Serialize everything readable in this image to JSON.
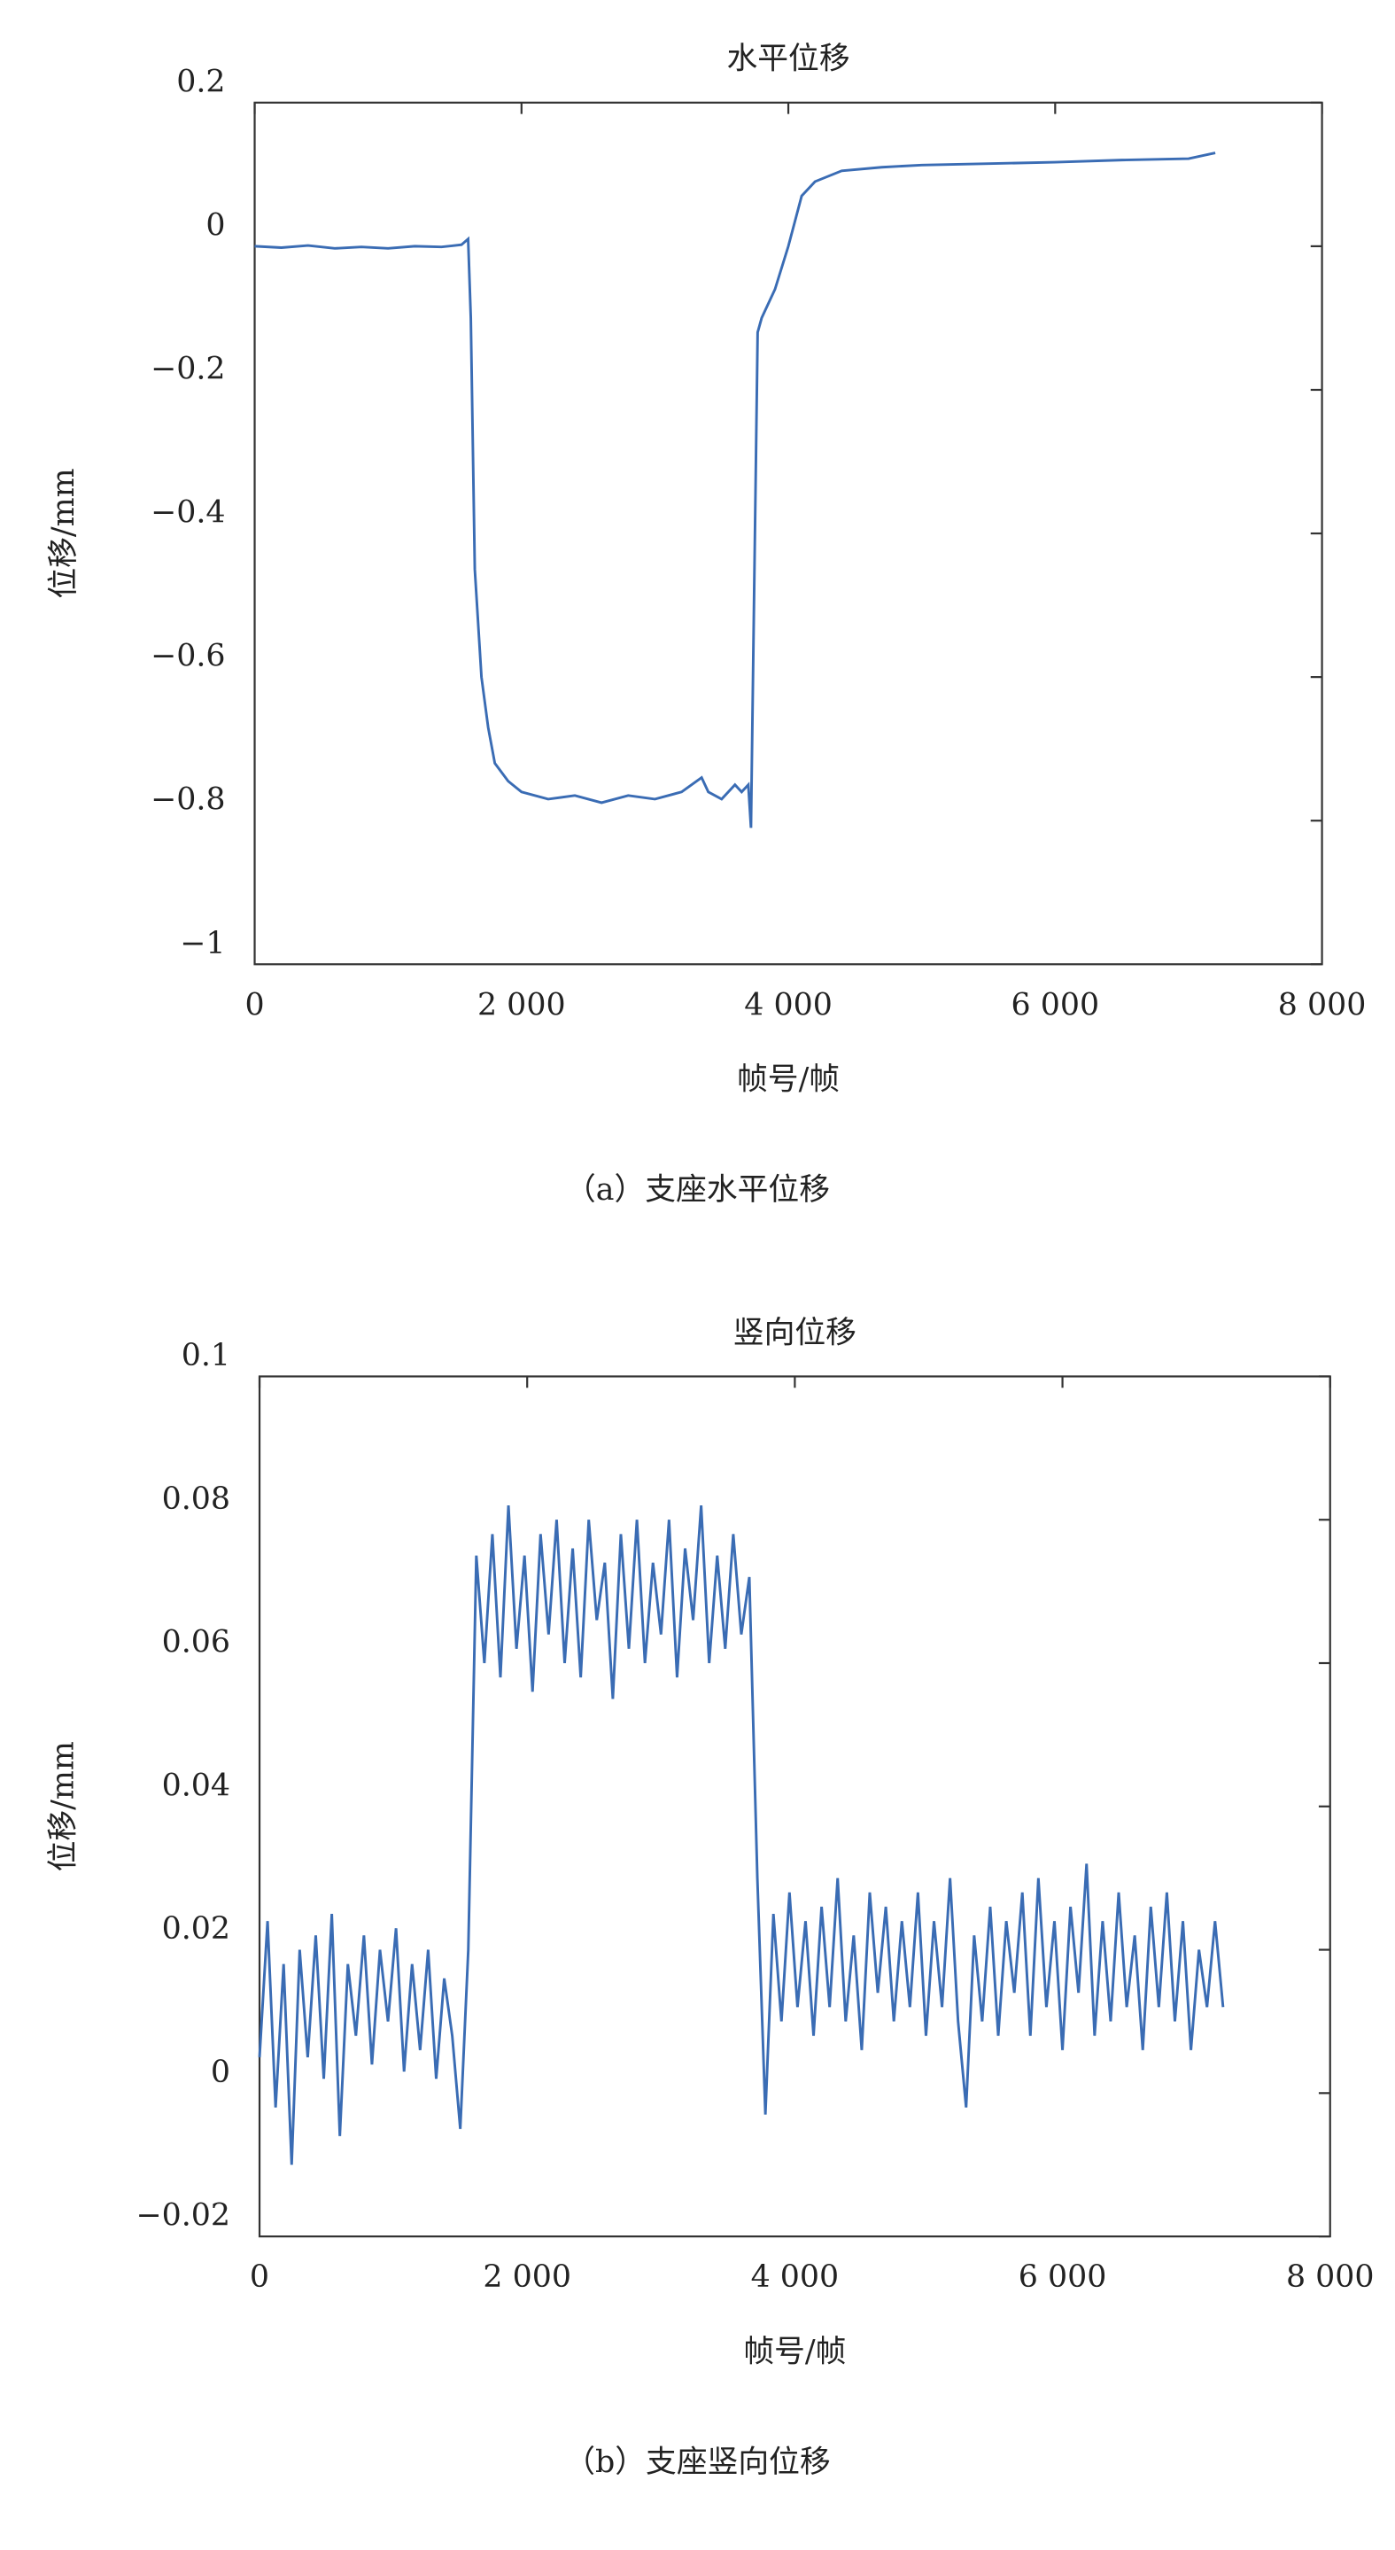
{
  "chart_data": [
    {
      "type": "line",
      "title": "水平位移",
      "xlabel": "帧号/帧",
      "ylabel": "位移/mm",
      "caption": "（a）支座水平位移",
      "xlim": [
        0,
        8000
      ],
      "xticks": [
        0,
        {
          "value": 2000,
          "label": "2 000"
        },
        {
          "value": 4000,
          "label": "4 000"
        },
        {
          "value": 6000,
          "label": "6 000"
        },
        {
          "value": 8000,
          "label": "8 000"
        }
      ],
      "ylim": [
        -1,
        0.2
      ],
      "yticks": [
        {
          "value": -1,
          "label": "−1"
        },
        {
          "value": -0.8,
          "label": "−0.8"
        },
        {
          "value": -0.6,
          "label": "−0.6"
        },
        {
          "value": -0.4,
          "label": "−0.4"
        },
        {
          "value": -0.2,
          "label": "−0.2"
        },
        0,
        0.2
      ],
      "series": [
        {
          "color": "#3a6cb4",
          "x": [
            0,
            200,
            400,
            600,
            800,
            1000,
            1200,
            1400,
            1550,
            1600,
            1620,
            1650,
            1700,
            1750,
            1800,
            1900,
            2000,
            2200,
            2400,
            2600,
            2800,
            3000,
            3200,
            3350,
            3400,
            3500,
            3600,
            3650,
            3700,
            3720,
            3770,
            3800,
            3900,
            4000,
            4100,
            4200,
            4400,
            4700,
            5000,
            5500,
            6000,
            6500,
            7000,
            7200
          ],
          "values": [
            0,
            -0.002,
            0.001,
            -0.003,
            -0.001,
            -0.003,
            0,
            -0.001,
            0.002,
            0.01,
            -0.1,
            -0.45,
            -0.6,
            -0.67,
            -0.72,
            -0.745,
            -0.76,
            -0.77,
            -0.765,
            -0.775,
            -0.765,
            -0.77,
            -0.76,
            -0.74,
            -0.76,
            -0.77,
            -0.75,
            -0.76,
            -0.75,
            -0.81,
            -0.12,
            -0.1,
            -0.06,
            0,
            0.07,
            0.09,
            0.105,
            0.11,
            0.113,
            0.115,
            0.117,
            0.12,
            0.122,
            0.13
          ]
        }
      ]
    },
    {
      "type": "line",
      "title": "竖向位移",
      "xlabel": "帧号/帧",
      "ylabel": "位移/mm",
      "caption": "（b）支座竖向位移",
      "xlim": [
        0,
        8000
      ],
      "xticks": [
        0,
        {
          "value": 2000,
          "label": "2 000"
        },
        {
          "value": 4000,
          "label": "4 000"
        },
        {
          "value": 6000,
          "label": "6 000"
        },
        {
          "value": 8000,
          "label": "8 000"
        }
      ],
      "ylim": [
        -0.02,
        0.1
      ],
      "yticks": [
        {
          "value": -0.02,
          "label": "−0.02"
        },
        0,
        0.02,
        0.04,
        0.06,
        0.08,
        0.1
      ],
      "series": [
        {
          "color": "#3a6cb4",
          "x": [
            0,
            60,
            120,
            180,
            240,
            300,
            360,
            420,
            480,
            540,
            600,
            660,
            720,
            780,
            840,
            900,
            960,
            1020,
            1080,
            1140,
            1200,
            1260,
            1320,
            1380,
            1440,
            1500,
            1560,
            1620,
            1680,
            1740,
            1800,
            1860,
            1920,
            1980,
            2040,
            2100,
            2160,
            2220,
            2280,
            2340,
            2400,
            2460,
            2520,
            2580,
            2640,
            2700,
            2760,
            2820,
            2880,
            2940,
            3000,
            3060,
            3120,
            3180,
            3240,
            3300,
            3360,
            3420,
            3480,
            3540,
            3600,
            3660,
            3720,
            3780,
            3840,
            3900,
            3960,
            4020,
            4080,
            4140,
            4200,
            4260,
            4320,
            4380,
            4440,
            4500,
            4560,
            4620,
            4680,
            4740,
            4800,
            4860,
            4920,
            4980,
            5040,
            5100,
            5160,
            5220,
            5280,
            5340,
            5400,
            5460,
            5520,
            5580,
            5640,
            5700,
            5760,
            5820,
            5880,
            5940,
            6000,
            6060,
            6120,
            6180,
            6240,
            6300,
            6360,
            6420,
            6480,
            6540,
            6600,
            6660,
            6720,
            6780,
            6840,
            6900,
            6960,
            7020,
            7080,
            7140,
            7200
          ],
          "values": [
            0.005,
            0.024,
            -0.002,
            0.018,
            -0.01,
            0.02,
            0.005,
            0.022,
            0.002,
            0.025,
            -0.006,
            0.018,
            0.008,
            0.022,
            0.004,
            0.02,
            0.01,
            0.023,
            0.003,
            0.018,
            0.006,
            0.02,
            0.002,
            0.016,
            0.008,
            -0.005,
            0.02,
            0.075,
            0.06,
            0.078,
            0.058,
            0.082,
            0.062,
            0.075,
            0.056,
            0.078,
            0.064,
            0.08,
            0.06,
            0.076,
            0.058,
            0.08,
            0.066,
            0.074,
            0.055,
            0.078,
            0.062,
            0.08,
            0.06,
            0.074,
            0.064,
            0.08,
            0.058,
            0.076,
            0.066,
            0.082,
            0.06,
            0.075,
            0.062,
            0.078,
            0.064,
            0.072,
            0.03,
            -0.003,
            0.025,
            0.01,
            0.028,
            0.012,
            0.024,
            0.008,
            0.026,
            0.012,
            0.03,
            0.01,
            0.022,
            0.006,
            0.028,
            0.014,
            0.026,
            0.01,
            0.024,
            0.012,
            0.028,
            0.008,
            0.024,
            0.012,
            0.03,
            0.01,
            -0.002,
            0.022,
            0.01,
            0.026,
            0.008,
            0.024,
            0.014,
            0.028,
            0.008,
            0.03,
            0.012,
            0.024,
            0.006,
            0.026,
            0.014,
            0.032,
            0.008,
            0.024,
            0.01,
            0.028,
            0.012,
            0.022,
            0.006,
            0.026,
            0.012,
            0.028,
            0.01,
            0.024,
            0.006,
            0.02,
            0.012,
            0.024,
            0.012
          ]
        }
      ]
    }
  ]
}
